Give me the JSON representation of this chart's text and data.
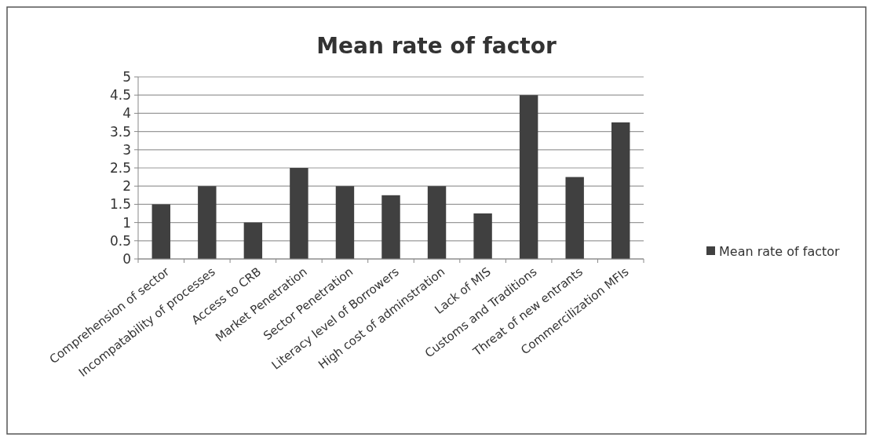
{
  "chart_data": {
    "type": "bar",
    "title": "Mean rate of factor",
    "categories": [
      "Comprehension of sector",
      "Incompatability of processes",
      "Access to CRB",
      "Market Penetration",
      "Sector Penetration",
      "Literacy level of Borrowers",
      "High cost of adminstration",
      "Lack of MIS",
      "Customs and Traditions",
      "Threat of new entrants",
      "Commercilization MFIs"
    ],
    "series": [
      {
        "name": "Mean rate of factor",
        "color": "#404040",
        "values": [
          1.5,
          2,
          1,
          2.5,
          2,
          1.75,
          2,
          1.25,
          4.5,
          2.25,
          3.75
        ]
      }
    ],
    "ylim": [
      0,
      5
    ],
    "yticks": [
      0,
      0.5,
      1,
      1.5,
      2,
      2.5,
      3,
      3.5,
      4,
      4.5,
      5
    ],
    "grid": "y",
    "legend": "right"
  }
}
